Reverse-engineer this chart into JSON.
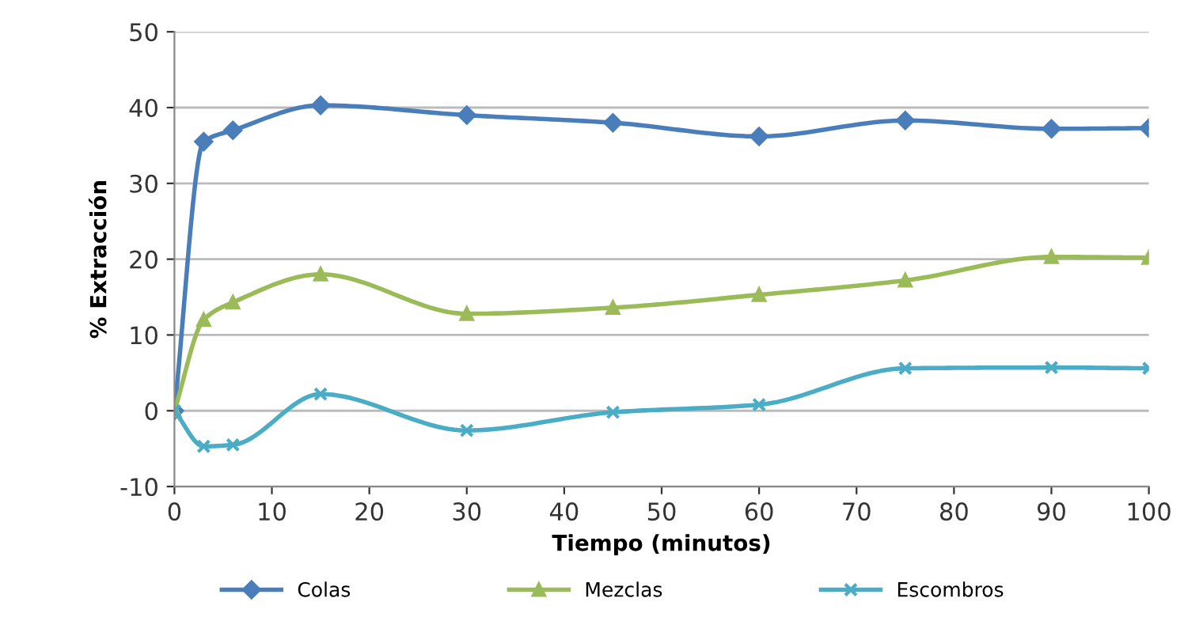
{
  "chart_data": {
    "type": "line",
    "xlabel": "Tiempo (minutos)",
    "ylabel": "% Extracción",
    "x": [
      0,
      3,
      6,
      15,
      30,
      45,
      60,
      75,
      90,
      100
    ],
    "series": [
      {
        "name": "Colas",
        "color": "#4a7ebb",
        "marker": "diamond",
        "values": [
          0,
          35.5,
          37,
          40.3,
          39,
          38,
          36.2,
          38.3,
          37.2,
          37.3
        ]
      },
      {
        "name": "Mezclas",
        "color": "#9bbb59",
        "marker": "triangle",
        "values": [
          0,
          12,
          14.3,
          18,
          12.8,
          13.6,
          15.3,
          17.2,
          20.3,
          20.2
        ]
      },
      {
        "name": "Escombros",
        "color": "#4bacc6",
        "marker": "cross",
        "values": [
          0,
          -4.7,
          -4.5,
          2.2,
          -2.6,
          -0.2,
          0.8,
          5.6,
          5.7,
          5.6
        ]
      }
    ],
    "xlim": [
      0,
      100
    ],
    "xticks": [
      0,
      10,
      20,
      30,
      40,
      50,
      60,
      70,
      80,
      90,
      100
    ],
    "ylim": [
      -10,
      50
    ],
    "yticks": [
      -10,
      0,
      10,
      20,
      30,
      40,
      50
    ],
    "grid": "y",
    "legend": "bottom",
    "line_style": "solid"
  }
}
